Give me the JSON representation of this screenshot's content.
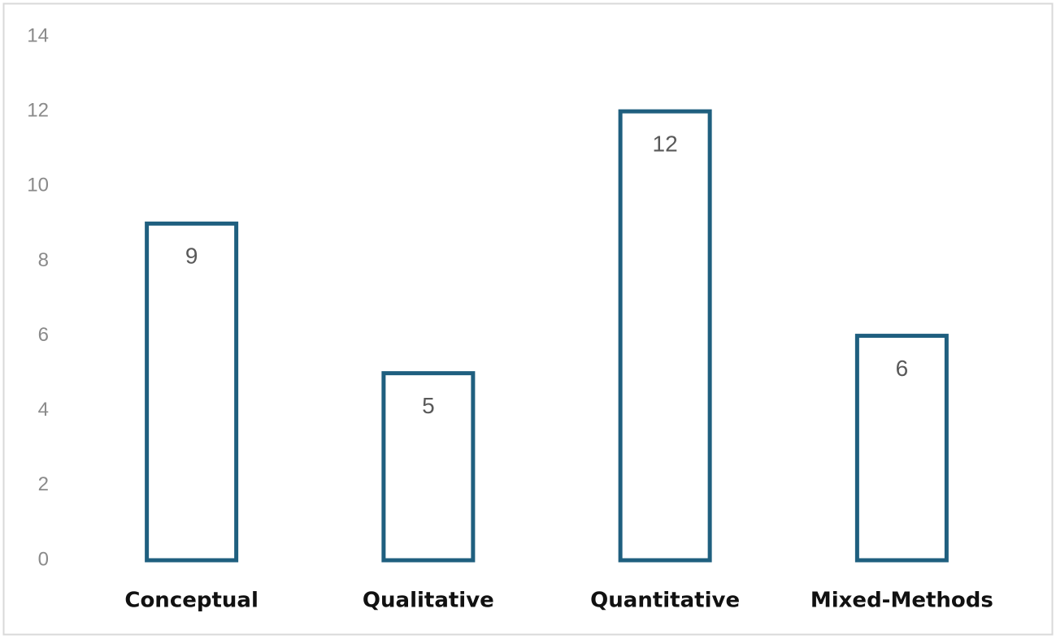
{
  "chart_data": {
    "type": "bar",
    "categories": [
      "Conceptual",
      "Qualitative",
      "Quantitative",
      "Mixed-Methods"
    ],
    "values": [
      9,
      5,
      12,
      6
    ],
    "color": "#1f5f7f",
    "ylim": [
      0,
      14
    ],
    "yticks": [
      0,
      2,
      4,
      6,
      8,
      10,
      12,
      14
    ],
    "grid": false
  }
}
